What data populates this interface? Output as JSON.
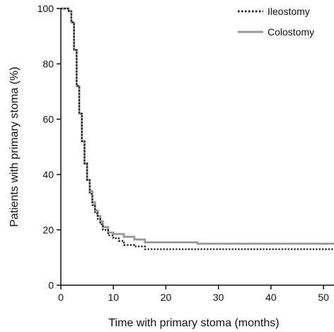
{
  "chart_data": {
    "type": "line",
    "xlabel": "Time with primary stoma (months)",
    "ylabel": "Patients with primary stoma (%)",
    "xlim": [
      0,
      52
    ],
    "ylim": [
      0,
      100
    ],
    "x_ticks": [
      0,
      10,
      20,
      30,
      40,
      50
    ],
    "y_ticks": [
      0,
      20,
      40,
      60,
      80,
      100
    ],
    "grid": false,
    "legend_position": "top-right",
    "series": [
      {
        "name": "Ileostomy",
        "color": "#111111",
        "style": "dotted",
        "x": [
          0,
          1.0,
          1.5,
          2.0,
          2.5,
          3.0,
          3.5,
          4.0,
          4.5,
          5.0,
          5.5,
          6.0,
          6.5,
          7.0,
          7.5,
          8.0,
          9.0,
          10.0,
          11.0,
          12.0,
          14.0,
          16.0,
          20.0,
          30.0,
          40.0,
          52.0
        ],
        "y": [
          100,
          100,
          99,
          95,
          85,
          72,
          62,
          52,
          44,
          38,
          33,
          29,
          26,
          24,
          22,
          20,
          18,
          17,
          16,
          14.5,
          14,
          13,
          13,
          13,
          13,
          13
        ]
      },
      {
        "name": "Colostomy",
        "color": "#999999",
        "style": "solid",
        "x": [
          0,
          1.0,
          1.5,
          2.0,
          2.5,
          3.0,
          3.5,
          4.0,
          4.5,
          5.0,
          5.5,
          6.0,
          6.5,
          7.0,
          7.5,
          8.0,
          9.0,
          10.0,
          12.0,
          14.0,
          16.0,
          18.0,
          22.0,
          26.0,
          30.0,
          40.0,
          52.0
        ],
        "y": [
          100,
          100,
          99,
          95,
          85,
          72,
          62,
          52,
          44,
          38,
          34,
          30,
          27,
          25,
          23,
          21,
          19,
          18.5,
          17.5,
          16.5,
          15.5,
          15.5,
          15.5,
          15,
          15,
          15,
          15
        ]
      }
    ]
  }
}
